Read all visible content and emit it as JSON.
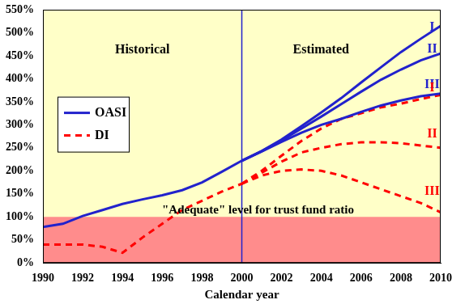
{
  "chart_data": {
    "type": "line",
    "x_label": "Calendar year",
    "historical_label": "Historical",
    "estimated_label": "Estimated",
    "adequate_label": "\"Adequate\" level for trust fund ratio",
    "adequate_level": 100,
    "estimate_start": 2000,
    "x": [
      1990,
      1991,
      1992,
      1993,
      1994,
      1995,
      1996,
      1997,
      1998,
      1999,
      2000,
      2001,
      2002,
      2003,
      2004,
      2005,
      2006,
      2007,
      2008,
      2009,
      2010
    ],
    "xlim": [
      1990,
      2010
    ],
    "xticks": [
      1990,
      1992,
      1994,
      1996,
      1998,
      2000,
      2002,
      2004,
      2006,
      2008,
      2010
    ],
    "ylim": [
      0,
      550
    ],
    "yticks": [
      {
        "value": 0,
        "label": "0%"
      },
      {
        "value": 50,
        "label": "50%"
      },
      {
        "value": 100,
        "label": "100%"
      },
      {
        "value": 150,
        "label": "150%"
      },
      {
        "value": 200,
        "label": "200%"
      },
      {
        "value": 250,
        "label": "250%"
      },
      {
        "value": 300,
        "label": "300%"
      },
      {
        "value": 350,
        "label": "350%"
      },
      {
        "value": 400,
        "label": "400%"
      },
      {
        "value": 450,
        "label": "450%"
      },
      {
        "value": 500,
        "label": "500%"
      },
      {
        "value": 550,
        "label": "550%"
      }
    ],
    "grid": false,
    "legend": "left",
    "series": [
      {
        "name": "OASI",
        "color": "#2222cc",
        "line_style": "solid",
        "values": [
          78,
          85,
          102,
          115,
          128,
          138,
          147,
          158,
          175,
          198,
          222,
          null,
          null,
          null,
          null,
          null,
          null,
          null,
          null,
          null,
          null
        ]
      },
      {
        "name": "DI",
        "color": "#ff0000",
        "line_style": "dashed",
        "values": [
          40,
          40,
          40,
          35,
          22,
          55,
          85,
          115,
          135,
          155,
          172,
          null,
          null,
          null,
          null,
          null,
          null,
          null,
          null,
          null,
          null
        ]
      },
      {
        "name": "I",
        "color": "#2222cc",
        "line_style": "solid",
        "values": [
          null,
          null,
          null,
          null,
          null,
          null,
          null,
          null,
          null,
          null,
          222,
          243,
          268,
          297,
          327,
          358,
          392,
          425,
          458,
          487,
          515
        ]
      },
      {
        "name": "II",
        "color": "#2222cc",
        "line_style": "solid",
        "values": [
          null,
          null,
          null,
          null,
          null,
          null,
          null,
          null,
          null,
          null,
          222,
          243,
          266,
          292,
          318,
          345,
          372,
          398,
          420,
          440,
          455
        ]
      },
      {
        "name": "III",
        "color": "#2222cc",
        "line_style": "solid",
        "values": [
          null,
          null,
          null,
          null,
          null,
          null,
          null,
          null,
          null,
          null,
          222,
          242,
          263,
          283,
          300,
          313,
          328,
          342,
          353,
          362,
          368
        ]
      },
      {
        "name": "I",
        "color": "#ff0000",
        "line_style": "dashed",
        "values": [
          null,
          null,
          null,
          null,
          null,
          null,
          null,
          null,
          null,
          null,
          172,
          200,
          233,
          265,
          292,
          313,
          325,
          338,
          346,
          356,
          365
        ]
      },
      {
        "name": "II",
        "color": "#ff0000",
        "line_style": "dashed",
        "values": [
          null,
          null,
          null,
          null,
          null,
          null,
          null,
          null,
          null,
          null,
          172,
          196,
          220,
          240,
          250,
          258,
          262,
          262,
          260,
          255,
          250
        ]
      },
      {
        "name": "III",
        "color": "#ff0000",
        "line_style": "dashed",
        "values": [
          null,
          null,
          null,
          null,
          null,
          null,
          null,
          null,
          null,
          null,
          172,
          190,
          200,
          203,
          200,
          190,
          175,
          160,
          145,
          130,
          110
        ]
      }
    ]
  }
}
